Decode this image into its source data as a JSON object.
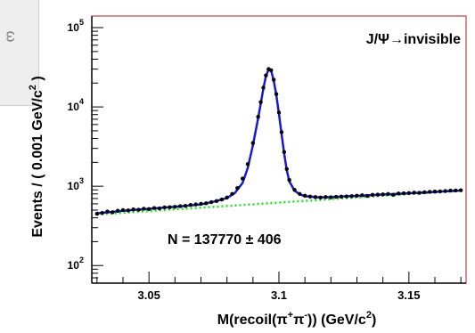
{
  "corner_fragment": {
    "glyph": "ω"
  },
  "chart_data": {
    "type": "line",
    "title": "",
    "xlabel": "M(recoil(π⁺π⁻)) (GeV/c²)",
    "xlabel_parts": [
      "M(recoil(π",
      "+",
      "π",
      "-",
      ")) (GeV/c",
      "2",
      ")"
    ],
    "ylabel": "Events / ( 0.001 GeV/c² )",
    "ylabel_parts": [
      "Events / ( 0.001 GeV/c",
      "2",
      " )"
    ],
    "xlim": [
      3.028,
      3.172
    ],
    "ylim": [
      60,
      140000
    ],
    "y_scale": "log",
    "x_ticks": [
      3.05,
      3.1,
      3.15
    ],
    "x_tick_labels": [
      "3.05",
      "3.1",
      "3.15"
    ],
    "y_ticks": [
      100,
      1000,
      10000,
      100000
    ],
    "y_tick_labels": [
      {
        "base": "10",
        "exp": "2"
      },
      {
        "base": "10",
        "exp": "3"
      },
      {
        "base": "10",
        "exp": "4"
      },
      {
        "base": "10",
        "exp": "5"
      }
    ],
    "annotations": {
      "process": "J/Ψ→invisible",
      "yield": "N = 137770 ±  406"
    },
    "colors": {
      "data": "#000000",
      "fit": "#1a1acc",
      "background": "#22dd22",
      "frame": "#aa2222"
    },
    "series": [
      {
        "kind": "data_points",
        "x": [
          3.03,
          3.032,
          3.034,
          3.036,
          3.038,
          3.04,
          3.042,
          3.044,
          3.046,
          3.048,
          3.05,
          3.052,
          3.054,
          3.056,
          3.058,
          3.06,
          3.062,
          3.064,
          3.066,
          3.068,
          3.07,
          3.072,
          3.074,
          3.076,
          3.078,
          3.08,
          3.082,
          3.084,
          3.086,
          3.088,
          3.09,
          3.092,
          3.093,
          3.094,
          3.095,
          3.096,
          3.097,
          3.098,
          3.099,
          3.1,
          3.101,
          3.102,
          3.103,
          3.104,
          3.106,
          3.108,
          3.11,
          3.112,
          3.114,
          3.116,
          3.118,
          3.12,
          3.122,
          3.124,
          3.126,
          3.128,
          3.13,
          3.132,
          3.134,
          3.136,
          3.138,
          3.14,
          3.142,
          3.144,
          3.146,
          3.148,
          3.15,
          3.152,
          3.154,
          3.156,
          3.158,
          3.16,
          3.162,
          3.164,
          3.166,
          3.168,
          3.17
        ],
        "y": [
          450,
          460,
          480,
          470,
          490,
          500,
          495,
          510,
          505,
          520,
          515,
          530,
          525,
          540,
          545,
          550,
          560,
          565,
          580,
          590,
          600,
          610,
          630,
          650,
          680,
          720,
          800,
          950,
          1250,
          1900,
          3500,
          7500,
          11500,
          17500,
          25000,
          30000,
          29000,
          22000,
          14500,
          8500,
          4800,
          2700,
          1650,
          1200,
          900,
          800,
          760,
          740,
          730,
          720,
          730,
          725,
          735,
          740,
          745,
          750,
          760,
          770,
          755,
          780,
          785,
          790,
          800,
          780,
          810,
          815,
          820,
          830,
          825,
          840,
          850,
          855,
          860,
          870,
          880,
          885,
          890
        ]
      },
      {
        "kind": "fit",
        "x": [
          3.03,
          3.04,
          3.05,
          3.06,
          3.07,
          3.075,
          3.08,
          3.083,
          3.086,
          3.088,
          3.09,
          3.092,
          3.093,
          3.094,
          3.095,
          3.096,
          3.097,
          3.098,
          3.099,
          3.1,
          3.101,
          3.102,
          3.103,
          3.104,
          3.106,
          3.108,
          3.11,
          3.115,
          3.12,
          3.13,
          3.14,
          3.15,
          3.16,
          3.17
        ],
        "y": [
          455,
          490,
          520,
          550,
          590,
          640,
          710,
          820,
          1100,
          1700,
          3300,
          7200,
          11000,
          17000,
          24500,
          29500,
          28500,
          21500,
          14000,
          8200,
          4600,
          2600,
          1600,
          1150,
          880,
          790,
          750,
          725,
          730,
          755,
          785,
          815,
          850,
          885
        ]
      },
      {
        "kind": "background",
        "x": [
          3.03,
          3.17
        ],
        "y": [
          440,
          880
        ]
      }
    ]
  }
}
